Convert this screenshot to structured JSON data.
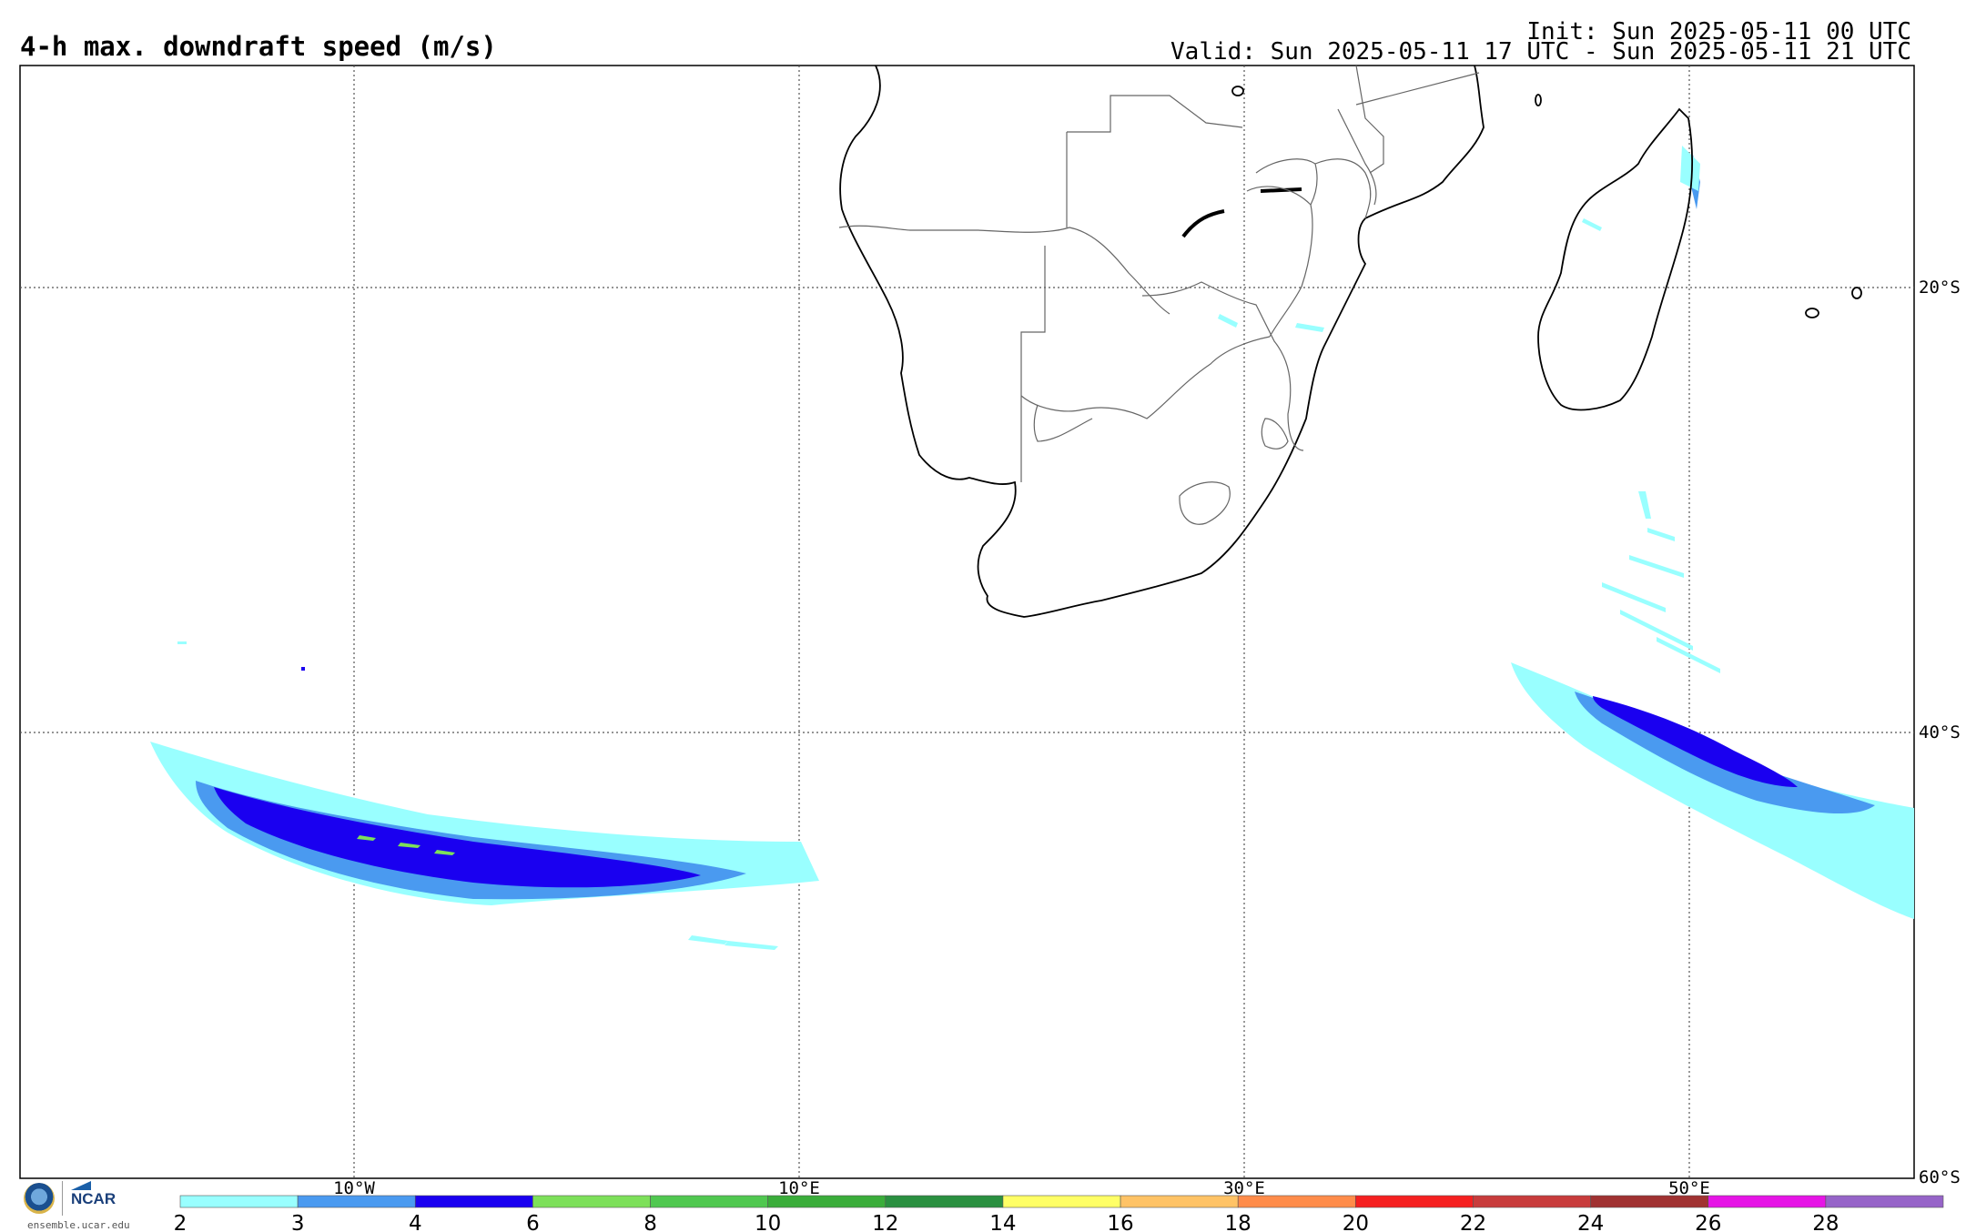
{
  "header": {
    "title": "4-h max. downdraft speed (m/s)",
    "init": "Init: Sun 2025-05-11 00 UTC",
    "valid": "Valid: Sun 2025-05-11 17 UTC - Sun 2025-05-11 21 UTC"
  },
  "map": {
    "lon_labels": [
      "10°W",
      "10°E",
      "30°E",
      "50°E"
    ],
    "lat_labels": [
      "20°S",
      "40°S",
      "60°S"
    ]
  },
  "colorbar": {
    "ticks": [
      "2",
      "3",
      "4",
      "6",
      "8",
      "10",
      "12",
      "14",
      "16",
      "18",
      "20",
      "22",
      "24",
      "26",
      "28"
    ],
    "colors": [
      "#99ffff",
      "#4a9af0",
      "#1a00f0",
      "#7de05a",
      "#50c850",
      "#3aad3a",
      "#2a9040",
      "#ffff66",
      "#ffc366",
      "#ff8c4a",
      "#f52020",
      "#c83c3c",
      "#a03232",
      "#e614e6",
      "#9664c8"
    ]
  },
  "footer": {
    "logo_text": "NCAR",
    "url": "ensemble.ucar.edu"
  },
  "icons": [
    "nsf-logo-icon",
    "ncar-logo-icon"
  ]
}
